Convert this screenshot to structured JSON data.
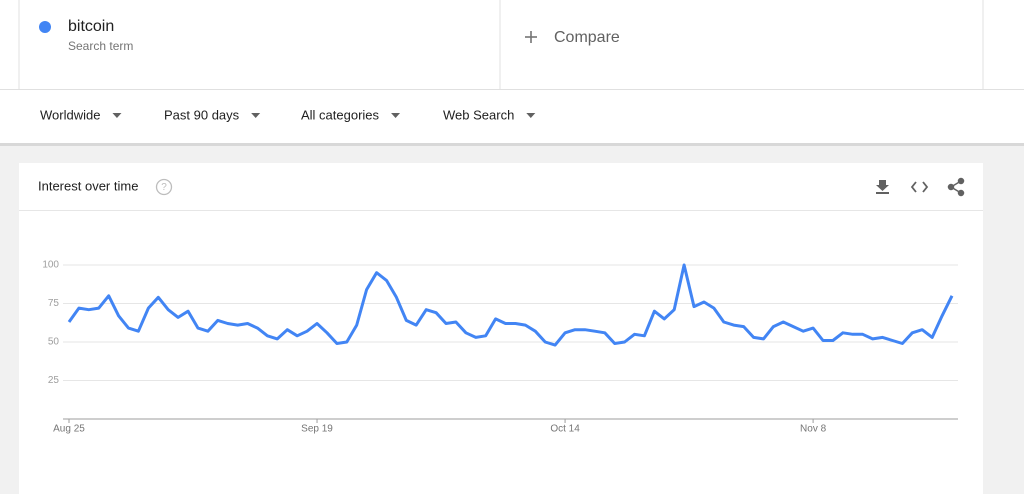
{
  "search": {
    "term": "bitcoin",
    "subtitle": "Search term",
    "compare": "Compare"
  },
  "filters": [
    "Worldwide",
    "Past 90 days",
    "All categories",
    "Web Search"
  ],
  "card": {
    "title": "Interest over time",
    "help": "?"
  },
  "chart_data": {
    "type": "line",
    "categories": [
      "Aug 25",
      null,
      null,
      null,
      null,
      null,
      null,
      null,
      null,
      null,
      null,
      null,
      null,
      null,
      null,
      null,
      null,
      null,
      null,
      null,
      null,
      null,
      null,
      null,
      null,
      "Sep 19",
      null,
      null,
      null,
      null,
      null,
      null,
      null,
      null,
      null,
      null,
      null,
      null,
      null,
      null,
      null,
      null,
      null,
      null,
      null,
      null,
      null,
      null,
      null,
      null,
      "Oct 14",
      null,
      null,
      null,
      null,
      null,
      null,
      null,
      null,
      null,
      null,
      null,
      null,
      null,
      null,
      null,
      null,
      null,
      null,
      null,
      null,
      null,
      null,
      null,
      null,
      "Nov 8",
      null,
      null,
      null,
      null,
      null,
      null,
      null,
      null,
      null,
      null,
      null,
      null,
      null,
      null
    ],
    "series": [
      {
        "name": "bitcoin",
        "color": "#4285f4",
        "values": [
          63,
          72,
          71,
          72,
          80,
          67,
          59,
          57,
          72,
          79,
          71,
          66,
          70,
          59,
          57,
          64,
          62,
          61,
          62,
          59,
          54,
          52,
          58,
          54,
          57,
          62,
          56,
          49,
          50,
          61,
          84,
          95,
          90,
          79,
          64,
          61,
          71,
          69,
          62,
          63,
          56,
          53,
          54,
          65,
          62,
          62,
          61,
          57,
          50,
          48,
          56,
          58,
          58,
          57,
          56,
          49,
          50,
          55,
          54,
          70,
          65,
          71,
          100,
          73,
          76,
          72,
          63,
          61,
          60,
          53,
          52,
          60,
          63,
          60,
          57,
          59,
          51,
          51,
          56,
          55,
          55,
          52,
          53,
          51,
          49,
          56,
          58,
          53,
          67,
          80
        ]
      }
    ],
    "ylim": [
      0,
      100
    ],
    "yticks": [
      25,
      50,
      75,
      100
    ],
    "grid": true
  }
}
